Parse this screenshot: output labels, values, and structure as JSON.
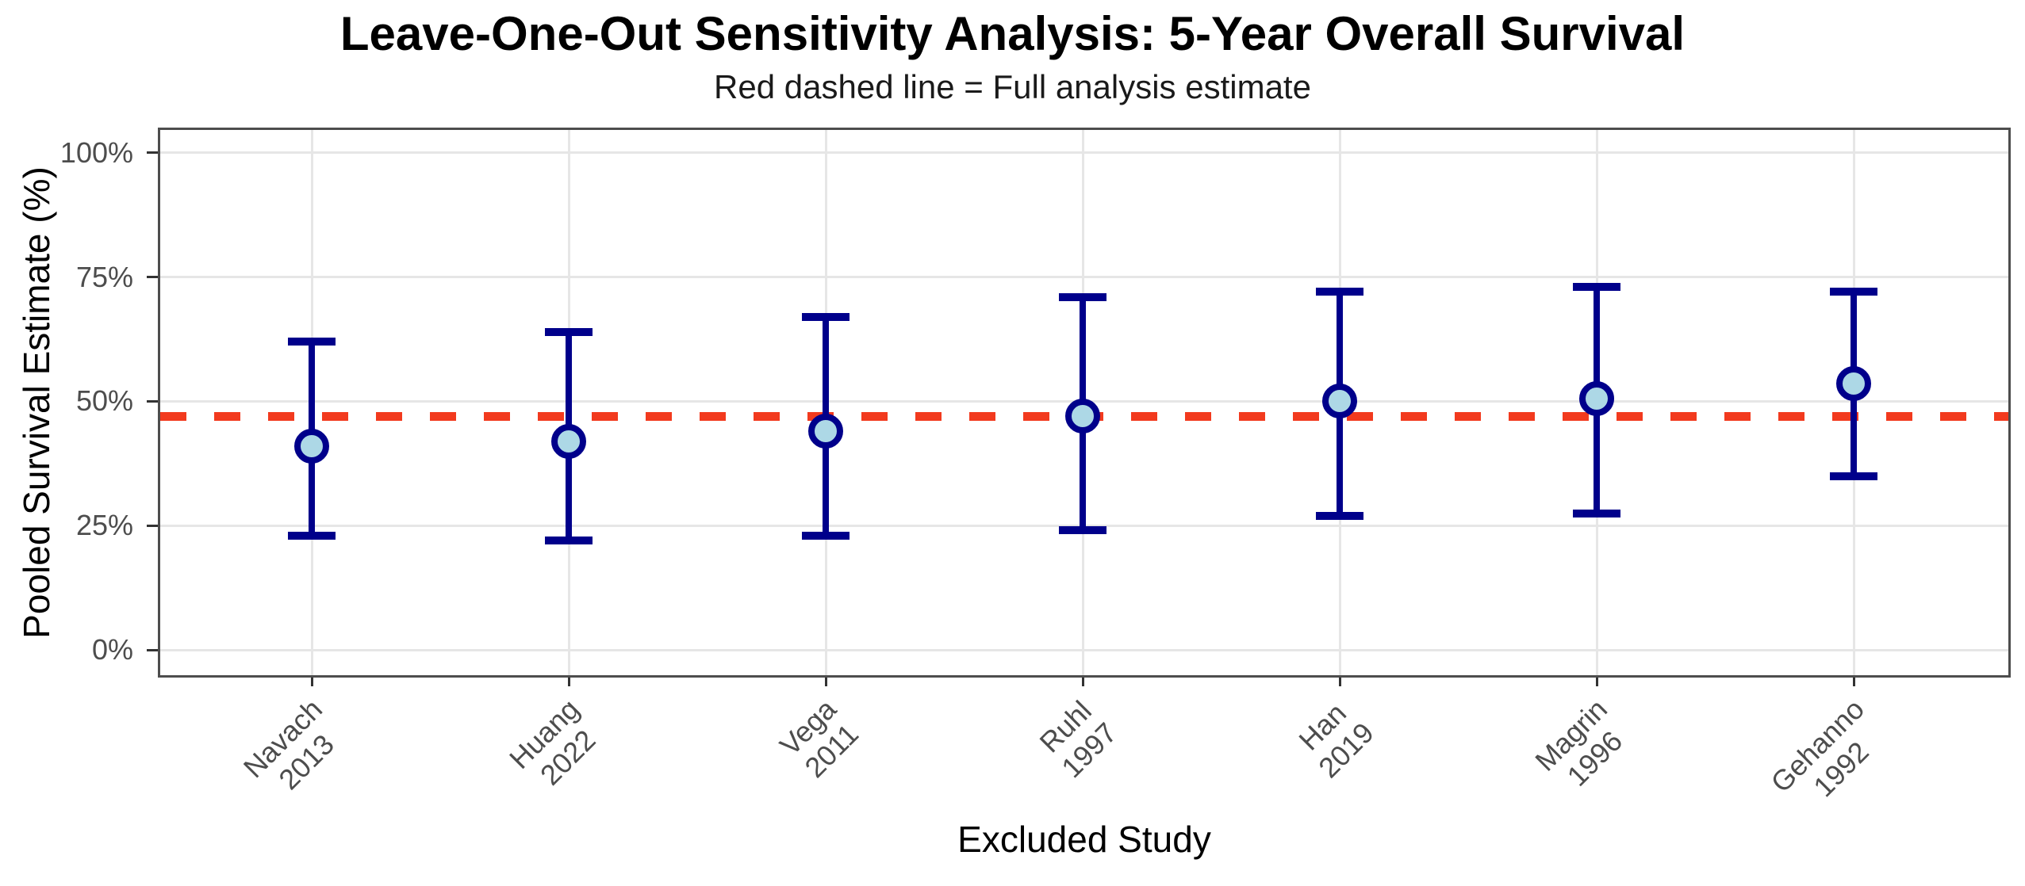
{
  "chart_data": {
    "type": "scatter",
    "title": "Leave-One-Out Sensitivity Analysis: 5-Year Overall Survival",
    "subtitle": "Red dashed line = Full analysis estimate",
    "xlabel": "Excluded Study",
    "ylabel": "Pooled Survival Estimate (%)",
    "ylim": [
      0,
      100
    ],
    "grid": true,
    "legend": false,
    "y_ticks": [
      {
        "value": 100,
        "label": "100%"
      },
      {
        "value": 75,
        "label": "75%"
      },
      {
        "value": 50,
        "label": "50%"
      },
      {
        "value": 25,
        "label": "25%"
      },
      {
        "value": 0,
        "label": "0%"
      }
    ],
    "reference_line": {
      "value": 47,
      "meaning": "Full analysis estimate",
      "style": "dashed"
    },
    "points": [
      {
        "study": "Navach",
        "year": "2013",
        "estimate": 41,
        "ci_low": 23,
        "ci_high": 62
      },
      {
        "study": "Huang",
        "year": "2022",
        "estimate": 42,
        "ci_low": 22,
        "ci_high": 64
      },
      {
        "study": "Vega",
        "year": "2011",
        "estimate": 44,
        "ci_low": 23,
        "ci_high": 67
      },
      {
        "study": "Ruhl",
        "year": "1997",
        "estimate": 47,
        "ci_low": 24,
        "ci_high": 71
      },
      {
        "study": "Han",
        "year": "2019",
        "estimate": 50,
        "ci_low": 27,
        "ci_high": 72
      },
      {
        "study": "Magrin",
        "year": "1996",
        "estimate": 50.5,
        "ci_low": 27.5,
        "ci_high": 73
      },
      {
        "study": "Gehanno",
        "year": "1992",
        "estimate": 53.5,
        "ci_low": 35,
        "ci_high": 72
      }
    ]
  },
  "colors": {
    "error_bar": "#00008B",
    "marker_fill": "#ADD8E6",
    "marker_stroke": "#00008B",
    "reference_line": "#F23A1E",
    "gridline": "#E6E6E6",
    "panel_border": "#4D4D4D",
    "axis_tick": "#333333",
    "tick_label": "#4D4D4D",
    "title_text": "#000000"
  }
}
